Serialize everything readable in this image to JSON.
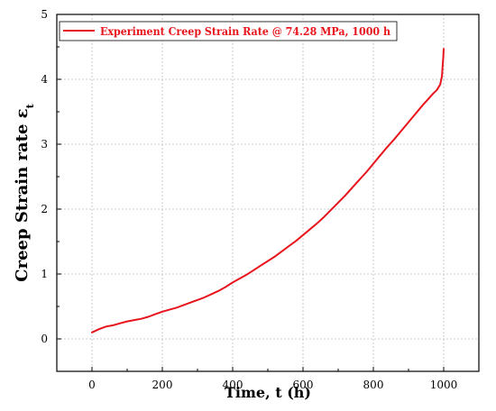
{
  "chart_data": {
    "type": "line",
    "title": "",
    "xlabel": "Time, t (h)",
    "ylabel": "Creep Strain rate ε",
    "ylabel_subscript": "t",
    "xlim": [
      -100,
      1100
    ],
    "ylim": [
      -0.5,
      5
    ],
    "xticks": [
      0,
      200,
      400,
      600,
      800,
      1000
    ],
    "yticks": [
      0,
      1,
      2,
      3,
      4,
      5
    ],
    "grid": true,
    "legend_position": "top-left",
    "series": [
      {
        "name": "Experiment Creep Strain Rate @ 74.28 MPa, 1000 h",
        "color": "#e8141c",
        "x": [
          0,
          20,
          40,
          60,
          80,
          100,
          120,
          140,
          160,
          180,
          200,
          220,
          240,
          260,
          280,
          300,
          320,
          340,
          360,
          380,
          400,
          420,
          440,
          460,
          480,
          500,
          520,
          540,
          560,
          580,
          600,
          620,
          640,
          660,
          680,
          700,
          720,
          740,
          760,
          780,
          800,
          820,
          840,
          860,
          880,
          900,
          920,
          940,
          960,
          970,
          980,
          990,
          995,
          997,
          999,
          1000
        ],
        "y": [
          0.1,
          0.15,
          0.19,
          0.21,
          0.24,
          0.27,
          0.29,
          0.31,
          0.34,
          0.38,
          0.42,
          0.45,
          0.48,
          0.52,
          0.56,
          0.6,
          0.64,
          0.69,
          0.74,
          0.8,
          0.87,
          0.93,
          0.99,
          1.06,
          1.13,
          1.2,
          1.27,
          1.35,
          1.43,
          1.51,
          1.6,
          1.69,
          1.78,
          1.88,
          1.99,
          2.1,
          2.21,
          2.33,
          2.45,
          2.57,
          2.7,
          2.83,
          2.96,
          3.08,
          3.21,
          3.34,
          3.47,
          3.6,
          3.72,
          3.78,
          3.83,
          3.92,
          4.05,
          4.2,
          4.35,
          4.47
        ]
      }
    ]
  }
}
